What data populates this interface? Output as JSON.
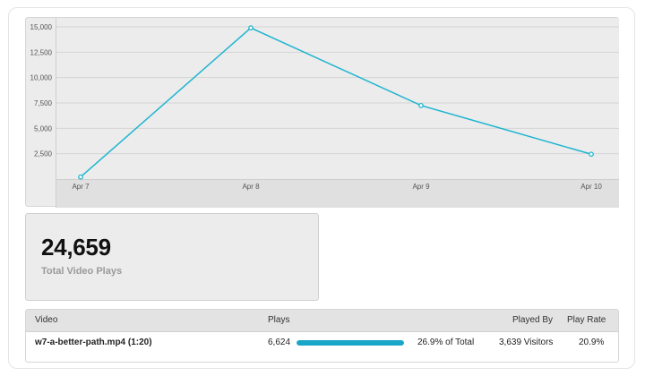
{
  "chart_data": {
    "type": "line",
    "x": [
      "Apr 7",
      "Apr 8",
      "Apr 9",
      "Apr 10"
    ],
    "series": [
      {
        "values": [
          200,
          14900,
          7250,
          2450
        ]
      }
    ],
    "yticks": [
      "2,500",
      "5,000",
      "7,500",
      "10,000",
      "12,500",
      "15,000"
    ],
    "ylim": [
      0,
      15000
    ],
    "grid": true,
    "line_color": "#1fb5d0"
  },
  "summary": {
    "total_value": "24,659",
    "total_label": "Total Video Plays"
  },
  "table": {
    "headers": {
      "video": "Video",
      "plays": "Plays",
      "played_by": "Played By",
      "play_rate": "Play Rate"
    },
    "rows": [
      {
        "video": "w7-a-better-path.mp4 (1:20)",
        "plays": "6,624",
        "share_text": "26.9% of Total",
        "share_fraction": 0.269,
        "played_by": "3,639 Visitors",
        "play_rate": "20.9%"
      }
    ]
  }
}
